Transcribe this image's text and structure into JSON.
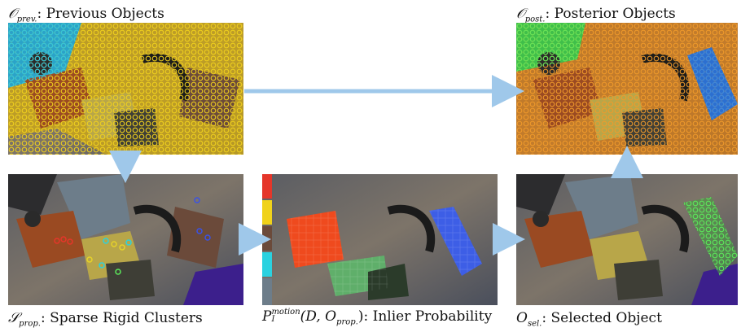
{
  "captions": {
    "prev_symbol": "𝒪",
    "prev_sub": "prev.",
    "prev_text": ": Previous Objects",
    "post_symbol": "𝒪",
    "post_sub": "post.",
    "post_text": ": Posterior Objects",
    "sprop_symbol": "𝒮",
    "sprop_sub": "prop.",
    "sprop_text": ": Sparse Rigid Clusters",
    "inlier_symbol": "P",
    "inlier_sup": "motion",
    "inlier_sub": "I",
    "inlier_args": "(D, O",
    "inlier_args_sub": "prop.",
    "inlier_text": "): Inlier Probability",
    "sel_symbol": "O",
    "sel_sub": "sel.",
    "sel_text": ": Selected Object"
  },
  "colors": {
    "arrow": "#9fc8ea",
    "prev_overlay": "#e8c21f",
    "prev_cyan": "#1ab2d9",
    "post_overlay": "#e08a1a",
    "post_green": "#4fd94a",
    "post_blue": "#1e73d9",
    "sel_green": "#55e15a"
  }
}
